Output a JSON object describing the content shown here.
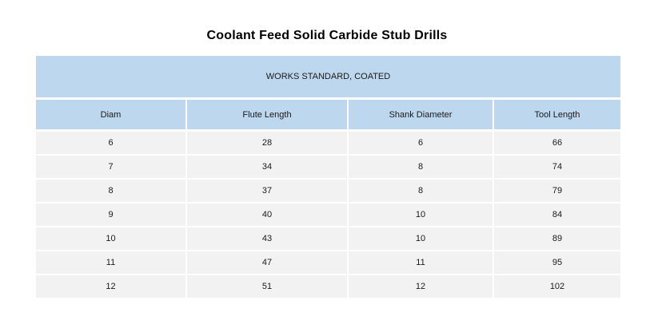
{
  "title": "Coolant Feed Solid Carbide Stub Drills",
  "table": {
    "banner": "WORKS STANDARD, COATED",
    "columns": [
      "Diam",
      "Flute Length",
      "Shank Diameter",
      "Tool Length"
    ],
    "rows": [
      [
        "6",
        "28",
        "6",
        "66"
      ],
      [
        "7",
        "34",
        "8",
        "74"
      ],
      [
        "8",
        "37",
        "8",
        "79"
      ],
      [
        "9",
        "40",
        "10",
        "84"
      ],
      [
        "10",
        "43",
        "10",
        "89"
      ],
      [
        "11",
        "47",
        "11",
        "95"
      ],
      [
        "12",
        "51",
        "12",
        "102"
      ]
    ]
  },
  "colors": {
    "header_bg": "#bdd7ee",
    "row_bg": "#f2f2f2",
    "text": "#1a1a1a",
    "page_bg": "#ffffff"
  }
}
